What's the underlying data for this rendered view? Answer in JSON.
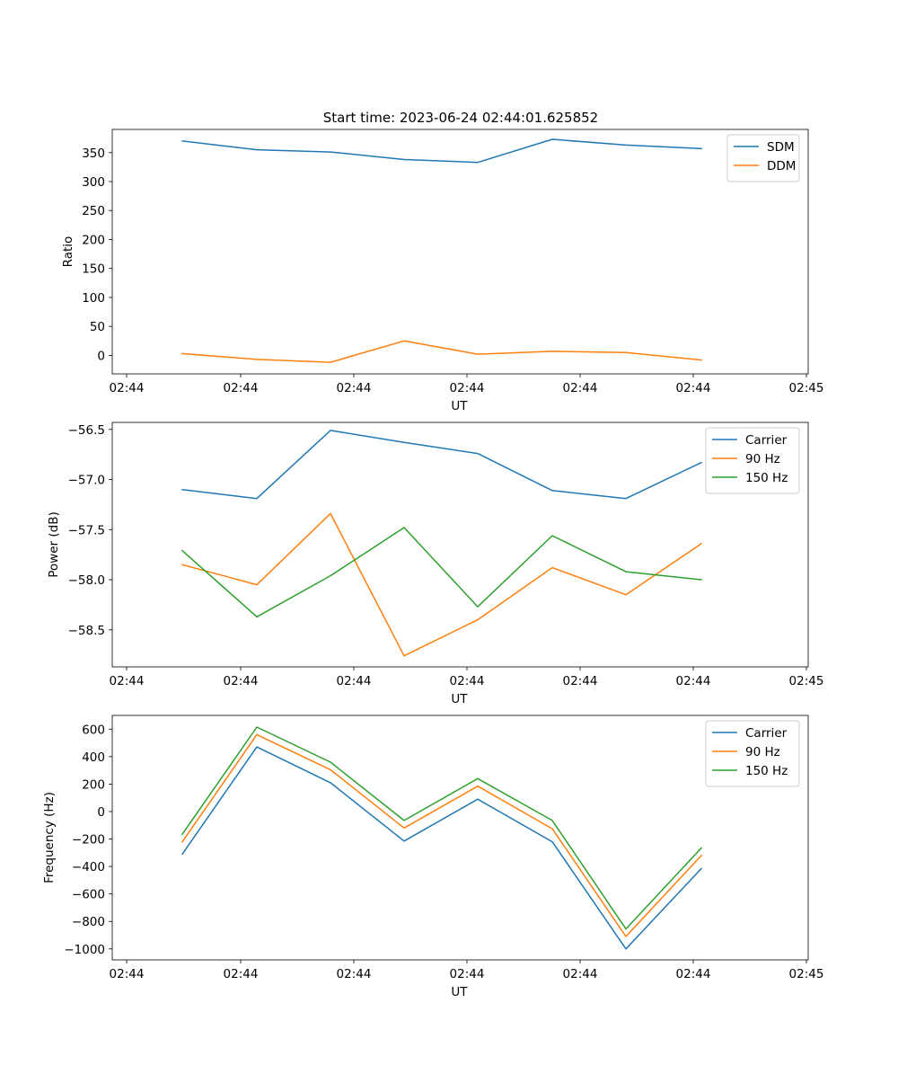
{
  "title": "Start time: 2023-06-24 02:44:01.625852",
  "colors": {
    "blue": "#1f77b4",
    "orange": "#ff7f0e",
    "green": "#2ca02c",
    "axes": "#000000",
    "background": "#ffffff"
  },
  "chart_data": [
    {
      "type": "line",
      "title": "Start time: 2023-06-24 02:44:01.625852",
      "xlabel": "UT",
      "ylabel": "Ratio",
      "x_tick_labels": [
        "02:44",
        "02:44",
        "02:44",
        "02:44",
        "02:44",
        "02:44",
        "02:45"
      ],
      "y_ticks": [
        0,
        50,
        100,
        150,
        200,
        250,
        300,
        350
      ],
      "y_tick_labels": [
        "0",
        "50",
        "100",
        "150",
        "200",
        "250",
        "300",
        "350"
      ],
      "ylim": [
        -32,
        390
      ],
      "grid": false,
      "legend": "top-right",
      "series": [
        {
          "name": "SDM",
          "color": "#1f77b4",
          "values": [
            370,
            355,
            351,
            338,
            333,
            373,
            363,
            357
          ]
        },
        {
          "name": "DDM",
          "color": "#ff7f0e",
          "values": [
            3,
            -7,
            -12,
            25,
            2,
            7,
            5,
            -8
          ]
        }
      ]
    },
    {
      "type": "line",
      "xlabel": "UT",
      "ylabel": "Power (dB)",
      "x_tick_labels": [
        "02:44",
        "02:44",
        "02:44",
        "02:44",
        "02:44",
        "02:44",
        "02:45"
      ],
      "y_ticks": [
        -58.5,
        -58.0,
        -57.5,
        -57.0,
        -56.5
      ],
      "y_tick_labels": [
        "−58.5",
        "−58.0",
        "−57.5",
        "−57.0",
        "−56.5"
      ],
      "ylim": [
        -58.87,
        -56.43
      ],
      "grid": false,
      "legend": "top-right",
      "series": [
        {
          "name": "Carrier",
          "color": "#1f77b4",
          "values": [
            -57.1,
            -57.19,
            -56.51,
            -56.63,
            -56.74,
            -57.11,
            -57.19,
            -56.83
          ]
        },
        {
          "name": "90 Hz",
          "color": "#ff7f0e",
          "values": [
            -57.85,
            -58.05,
            -57.34,
            -58.76,
            -58.4,
            -57.88,
            -58.15,
            -57.64
          ]
        },
        {
          "name": "150 Hz",
          "color": "#2ca02c",
          "values": [
            -57.71,
            -58.37,
            -57.96,
            -57.48,
            -58.27,
            -57.56,
            -57.92,
            -58.0
          ]
        }
      ]
    },
    {
      "type": "line",
      "xlabel": "UT",
      "ylabel": "Frequency (Hz)",
      "x_tick_labels": [
        "02:44",
        "02:44",
        "02:44",
        "02:44",
        "02:44",
        "02:44",
        "02:45"
      ],
      "y_ticks": [
        -1000,
        -800,
        -600,
        -400,
        -200,
        0,
        200,
        400,
        600
      ],
      "y_tick_labels": [
        "−1000",
        "−800",
        "−600",
        "−400",
        "−200",
        "0",
        "200",
        "400",
        "600"
      ],
      "ylim": [
        -1080,
        700
      ],
      "grid": false,
      "legend": "top-right",
      "series": [
        {
          "name": "Carrier",
          "color": "#1f77b4",
          "values": [
            -310,
            470,
            210,
            -215,
            90,
            -220,
            -1000,
            -415
          ]
        },
        {
          "name": "90 Hz",
          "color": "#ff7f0e",
          "values": [
            -220,
            560,
            305,
            -120,
            185,
            -125,
            -910,
            -320
          ]
        },
        {
          "name": "150 Hz",
          "color": "#2ca02c",
          "values": [
            -165,
            615,
            360,
            -65,
            240,
            -65,
            -855,
            -265
          ]
        }
      ]
    }
  ]
}
